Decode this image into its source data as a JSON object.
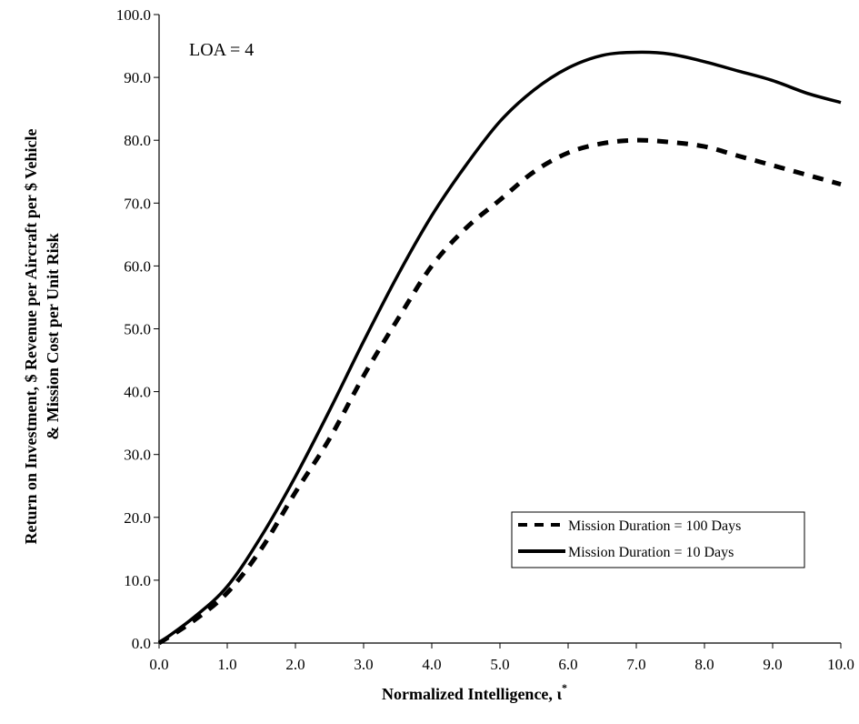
{
  "chart_data": {
    "type": "line",
    "title": "",
    "annotation": "LOA = 4",
    "xlabel_main": "Normalized Intelligence, ",
    "xlabel_symbol": "ι",
    "xlabel_superscript": "*",
    "ylabel_line1": "Return on Investment, $ Revenue per Aircraft per $ Vehicle",
    "ylabel_line2": "& Mission Cost per Unit Risk",
    "xlim": [
      0,
      10
    ],
    "ylim": [
      0,
      100
    ],
    "x_ticks": [
      "0.0",
      "1.0",
      "2.0",
      "3.0",
      "4.0",
      "5.0",
      "6.0",
      "7.0",
      "8.0",
      "9.0",
      "10.0"
    ],
    "y_ticks": [
      "0.0",
      "10.0",
      "20.0",
      "30.0",
      "40.0",
      "50.0",
      "60.0",
      "70.0",
      "80.0",
      "90.0",
      "100.0"
    ],
    "grid": false,
    "legend_position": "lower-right",
    "x": [
      0,
      0.5,
      1,
      1.5,
      2,
      2.5,
      3,
      3.5,
      4,
      4.5,
      5,
      5.5,
      6,
      6.5,
      7,
      7.5,
      8,
      8.5,
      9,
      9.5,
      10
    ],
    "series": [
      {
        "name": "Mission Duration = 100 Days",
        "style": "dashed",
        "color": "#000000",
        "values": [
          0,
          3.5,
          8.0,
          15.0,
          24.0,
          32.5,
          42.5,
          51.5,
          60.0,
          66.0,
          70.5,
          75.0,
          78.0,
          79.5,
          80.0,
          79.7,
          79.0,
          77.5,
          76.0,
          74.5,
          73.0
        ]
      },
      {
        "name": "Mission Duration = 10 Days",
        "style": "solid",
        "color": "#000000",
        "values": [
          0,
          4.0,
          9.0,
          17.0,
          26.5,
          37.0,
          48.0,
          58.5,
          68.0,
          76.0,
          83.0,
          88.0,
          91.5,
          93.5,
          94.0,
          93.7,
          92.5,
          91.0,
          89.5,
          87.5,
          86.0
        ]
      }
    ]
  }
}
